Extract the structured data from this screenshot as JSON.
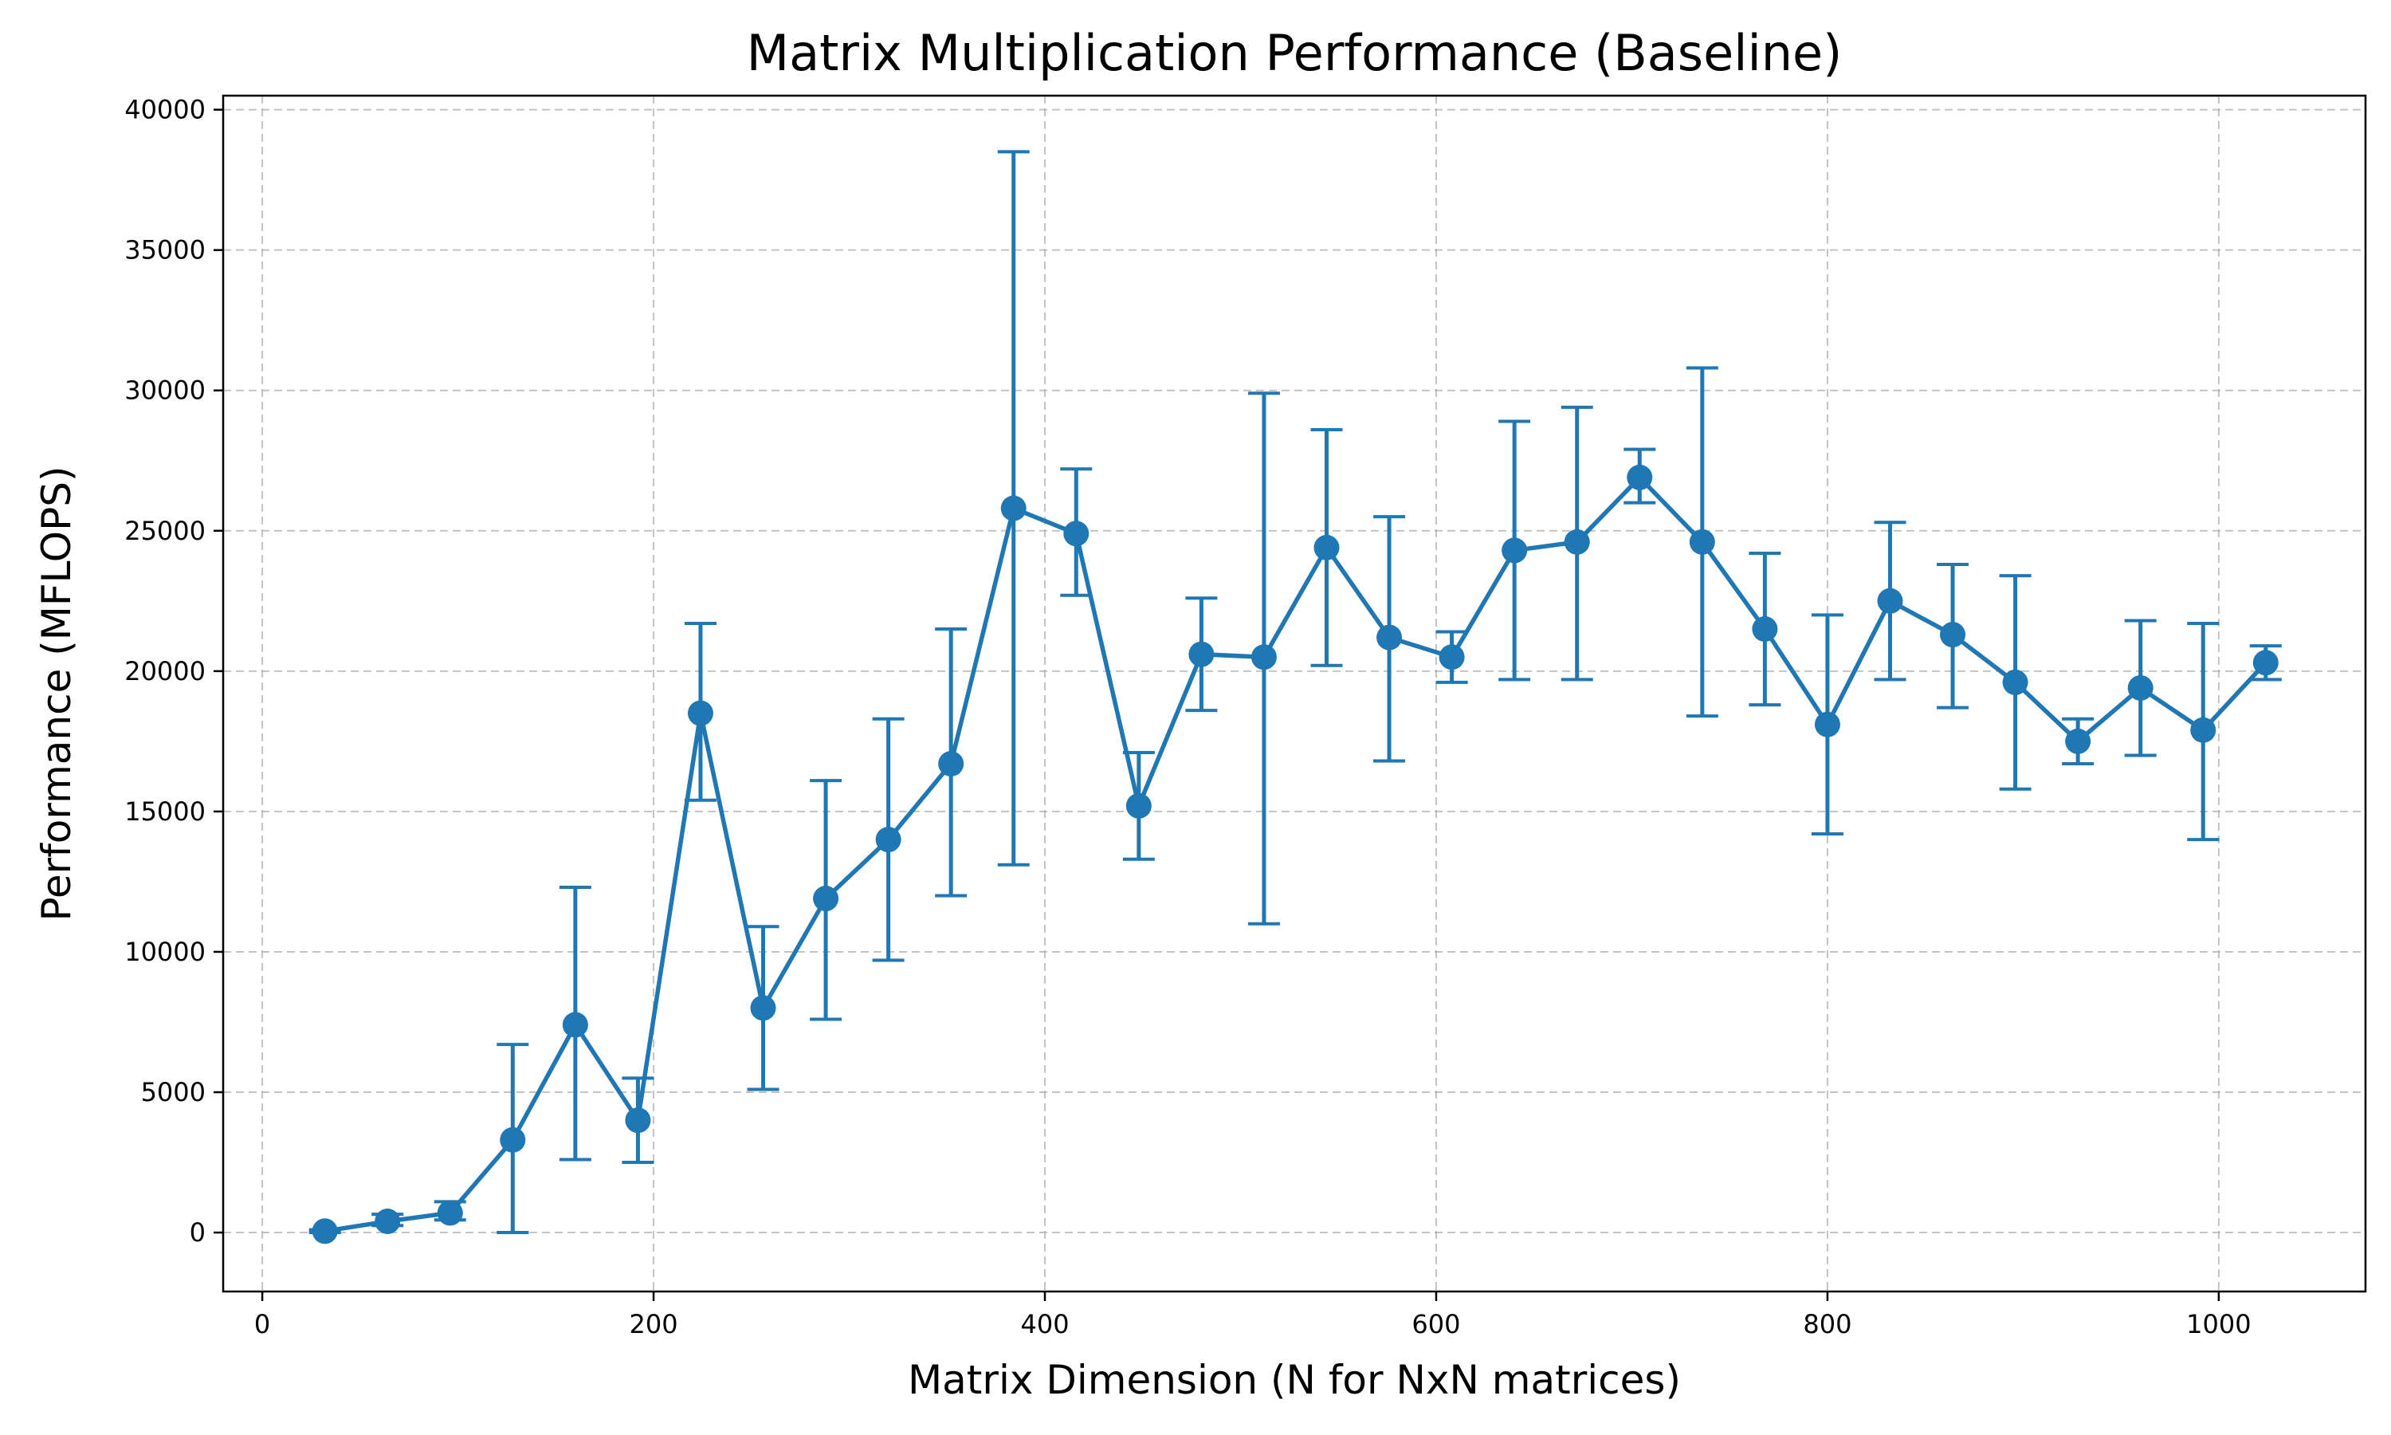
{
  "chart_data": {
    "type": "line",
    "title": "Matrix Multiplication Performance (Baseline)",
    "xlabel": "Matrix Dimension (N for NxN matrices)",
    "ylabel": "Performance (MFLOPS)",
    "xlim": [
      -20,
      1075
    ],
    "ylim": [
      -2100,
      40500
    ],
    "xticks": [
      0,
      200,
      400,
      600,
      800,
      1000
    ],
    "yticks": [
      0,
      5000,
      10000,
      15000,
      20000,
      25000,
      30000,
      35000,
      40000
    ],
    "grid": true,
    "color": "#1f77b4",
    "series": [
      {
        "x": [
          32,
          64,
          96,
          128,
          160,
          192,
          224,
          256,
          288,
          320,
          352,
          384,
          416,
          448,
          480,
          512,
          544,
          576,
          608,
          640,
          672,
          704,
          736,
          768,
          800,
          832,
          864,
          896,
          928,
          960,
          992,
          1024
        ],
        "y": [
          50,
          400,
          700,
          3300,
          7400,
          4000,
          18500,
          8000,
          11900,
          14000,
          16700,
          25800,
          24900,
          15200,
          20600,
          20500,
          24400,
          21200,
          20500,
          24300,
          24600,
          26900,
          24600,
          21500,
          18100,
          22500,
          21300,
          19600,
          17500,
          19400,
          17900,
          20300
        ],
        "error_low": [
          0,
          250,
          450,
          0,
          2600,
          2500,
          15400,
          5100,
          7600,
          9700,
          12000,
          13100,
          22700,
          13300,
          18600,
          11000,
          20200,
          16800,
          19600,
          19700,
          19700,
          26000,
          18400,
          18800,
          14200,
          19700,
          18700,
          15800,
          16700,
          17000,
          14000,
          19700
        ],
        "error_high": [
          100,
          650,
          1100,
          6700,
          12300,
          5500,
          21700,
          10900,
          16100,
          18300,
          21500,
          38500,
          27200,
          17100,
          22600,
          29900,
          28600,
          25500,
          21400,
          28900,
          29400,
          27900,
          30800,
          24200,
          22000,
          25300,
          23800,
          23400,
          18300,
          21800,
          21700,
          20900
        ]
      }
    ]
  }
}
